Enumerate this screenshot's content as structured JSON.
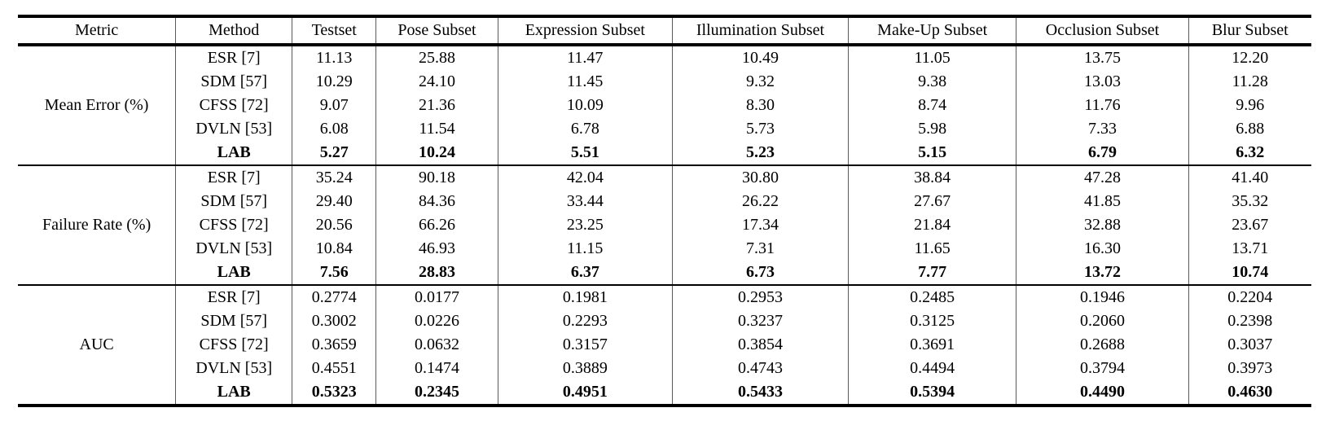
{
  "table": {
    "columns": [
      "Metric",
      "Method",
      "Testset",
      "Pose Subset",
      "Expression Subset",
      "Illumination Subset",
      "Make-Up Subset",
      "Occlusion Subset",
      "Blur Subset"
    ],
    "sections": [
      {
        "metric": "Mean Error (%)",
        "rows": [
          {
            "method": "ESR [7]",
            "bold": false,
            "values": [
              "11.13",
              "25.88",
              "11.47",
              "10.49",
              "11.05",
              "13.75",
              "12.20"
            ]
          },
          {
            "method": "SDM [57]",
            "bold": false,
            "values": [
              "10.29",
              "24.10",
              "11.45",
              "9.32",
              "9.38",
              "13.03",
              "11.28"
            ]
          },
          {
            "method": "CFSS [72]",
            "bold": false,
            "values": [
              "9.07",
              "21.36",
              "10.09",
              "8.30",
              "8.74",
              "11.76",
              "9.96"
            ]
          },
          {
            "method": "DVLN [53]",
            "bold": false,
            "values": [
              "6.08",
              "11.54",
              "6.78",
              "5.73",
              "5.98",
              "7.33",
              "6.88"
            ]
          },
          {
            "method": "LAB",
            "bold": true,
            "values": [
              "5.27",
              "10.24",
              "5.51",
              "5.23",
              "5.15",
              "6.79",
              "6.32"
            ]
          }
        ]
      },
      {
        "metric": "Failure Rate (%)",
        "rows": [
          {
            "method": "ESR [7]",
            "bold": false,
            "values": [
              "35.24",
              "90.18",
              "42.04",
              "30.80",
              "38.84",
              "47.28",
              "41.40"
            ]
          },
          {
            "method": "SDM [57]",
            "bold": false,
            "values": [
              "29.40",
              "84.36",
              "33.44",
              "26.22",
              "27.67",
              "41.85",
              "35.32"
            ]
          },
          {
            "method": "CFSS [72]",
            "bold": false,
            "values": [
              "20.56",
              "66.26",
              "23.25",
              "17.34",
              "21.84",
              "32.88",
              "23.67"
            ]
          },
          {
            "method": "DVLN [53]",
            "bold": false,
            "values": [
              "10.84",
              "46.93",
              "11.15",
              "7.31",
              "11.65",
              "16.30",
              "13.71"
            ]
          },
          {
            "method": "LAB",
            "bold": true,
            "values": [
              "7.56",
              "28.83",
              "6.37",
              "6.73",
              "7.77",
              "13.72",
              "10.74"
            ]
          }
        ]
      },
      {
        "metric": "AUC",
        "rows": [
          {
            "method": "ESR [7]",
            "bold": false,
            "values": [
              "0.2774",
              "0.0177",
              "0.1981",
              "0.2953",
              "0.2485",
              "0.1946",
              "0.2204"
            ]
          },
          {
            "method": "SDM [57]",
            "bold": false,
            "values": [
              "0.3002",
              "0.0226",
              "0.2293",
              "0.3237",
              "0.3125",
              "0.2060",
              "0.2398"
            ]
          },
          {
            "method": "CFSS [72]",
            "bold": false,
            "values": [
              "0.3659",
              "0.0632",
              "0.3157",
              "0.3854",
              "0.3691",
              "0.2688",
              "0.3037"
            ]
          },
          {
            "method": "DVLN [53]",
            "bold": false,
            "values": [
              "0.4551",
              "0.1474",
              "0.3889",
              "0.4743",
              "0.4494",
              "0.3794",
              "0.3973"
            ]
          },
          {
            "method": "LAB",
            "bold": true,
            "values": [
              "0.5323",
              "0.2345",
              "0.4951",
              "0.5433",
              "0.5394",
              "0.4490",
              "0.4630"
            ]
          }
        ]
      }
    ]
  }
}
